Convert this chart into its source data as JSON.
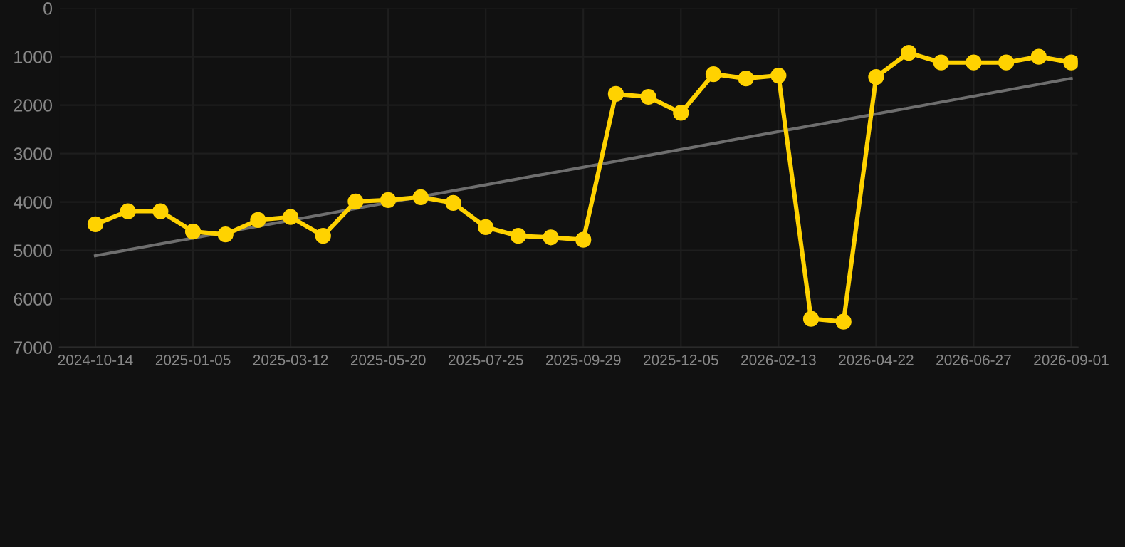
{
  "chart_data": {
    "type": "line",
    "categories": [
      "2024-10-14",
      null,
      null,
      "2025-01-05",
      null,
      null,
      "2025-03-12",
      null,
      null,
      "2025-05-20",
      null,
      null,
      "2025-07-25",
      null,
      null,
      "2025-09-29",
      null,
      null,
      "2025-12-05",
      null,
      null,
      "2026-02-13",
      null,
      null,
      "2026-04-22",
      null,
      null,
      "2026-06-27",
      null,
      null,
      "2026-09-01"
    ],
    "series": [
      {
        "color": "#ffd200",
        "marker": "circle",
        "values": [
          4460,
          4190,
          4190,
          4610,
          4670,
          4370,
          4310,
          4700,
          3990,
          3960,
          3900,
          4020,
          4520,
          4700,
          4730,
          4780,
          1770,
          1830,
          2160,
          1360,
          1450,
          1390,
          6410,
          6470,
          1420,
          920,
          1120,
          1120,
          1120,
          1000,
          1120
        ]
      },
      {
        "type": "line",
        "color": "#6e6e6e",
        "values": [
          5110,
          null,
          null,
          null,
          null,
          null,
          null,
          null,
          null,
          null,
          null,
          null,
          null,
          null,
          null,
          null,
          null,
          null,
          null,
          null,
          null,
          null,
          null,
          null,
          null,
          null,
          null,
          null,
          null,
          null,
          1450
        ]
      }
    ],
    "ylim": [
      7000,
      0
    ],
    "yticks": [
      0,
      1000,
      2000,
      3000,
      4000,
      5000,
      6000,
      7000
    ],
    "grid": true,
    "line_style": "solid"
  }
}
